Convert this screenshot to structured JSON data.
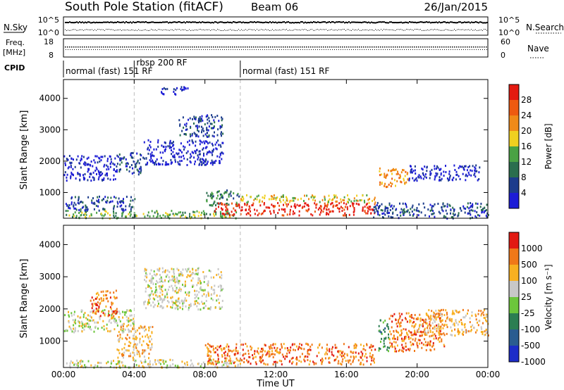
{
  "header": {
    "title": "South Pole Station (fitACF)",
    "beam": "Beam 06",
    "date": "26/Jan/2015"
  },
  "top_panels": {
    "nsky_label": "N.Sky",
    "nsearch_label": "N.Search",
    "nsky_ticks": [
      "10^5",
      "10^0"
    ],
    "nsearch_ticks": [
      "10^5",
      "10^0"
    ],
    "freq_label": "Freq.",
    "freq_unit": "[MHz]",
    "freq_ticks": [
      "18",
      "8"
    ],
    "nave_label": "Nave",
    "nave_ticks": [
      "60",
      "0"
    ],
    "cpid_label": "CPID"
  },
  "cpid_segments": [
    {
      "label": "normal (fast) 151 RF",
      "start_hour": 0
    },
    {
      "label": "rbsp 200 RF",
      "start_hour": 4
    },
    {
      "label": "normal (fast) 151 RF",
      "start_hour": 10
    }
  ],
  "axes": {
    "xlabel": "Time UT",
    "xticks": [
      "00:00",
      "04:00",
      "08:00",
      "12:00",
      "16:00",
      "20:00",
      "00:00"
    ],
    "ylabel": "Slant Range [km]",
    "yticks": [
      "4000",
      "3000",
      "2000",
      "1000"
    ]
  },
  "power_colorbar": {
    "label": "Power [dB]",
    "ticks": [
      "28",
      "24",
      "20",
      "16",
      "12",
      "8",
      "4"
    ],
    "colors": [
      "#1c1cd6",
      "#1c3c8c",
      "#2a6e4e",
      "#4aa244",
      "#f0d020",
      "#f08a18",
      "#ee5a10",
      "#e41a10"
    ]
  },
  "velocity_colorbar": {
    "label": "Velocity [m s⁻¹]",
    "ticks": [
      "1000",
      "500",
      "100",
      "25",
      "-25",
      "-100",
      "-500",
      "-1000"
    ],
    "colors": [
      "#1c2cc8",
      "#2a5c90",
      "#2c7e52",
      "#6cc63c",
      "#c8c8c8",
      "#f8b020",
      "#f07818",
      "#e21a12"
    ]
  },
  "chart_data": {
    "type": "heatmap",
    "title": "South Pole Station (fitACF)",
    "xlabel": "Time UT",
    "ylabel": "Slant Range [km]",
    "xlim_hours": [
      0,
      24
    ],
    "ylim_km": [
      180,
      4600
    ],
    "panels": [
      {
        "name": "Power [dB]",
        "blobs": [
          {
            "t0": 0.1,
            "t1": 10.0,
            "r0": 200,
            "r1": 450,
            "level": 3
          },
          {
            "t0": 0.1,
            "t1": 4.0,
            "r0": 450,
            "r1": 900,
            "level": 1
          },
          {
            "t0": 0.0,
            "t1": 3.0,
            "r0": 1400,
            "r1": 2200,
            "level": 0
          },
          {
            "t0": 3.0,
            "t1": 4.5,
            "r0": 1600,
            "r1": 2300,
            "level": 1
          },
          {
            "t0": 4.5,
            "t1": 9.0,
            "r0": 1900,
            "r1": 2700,
            "level": 0
          },
          {
            "t0": 6.5,
            "t1": 9.0,
            "r0": 2800,
            "r1": 3500,
            "level": 1
          },
          {
            "t0": 5.5,
            "t1": 7.0,
            "r0": 4150,
            "r1": 4400,
            "level": 0
          },
          {
            "t0": 8.0,
            "t1": 10.0,
            "r0": 600,
            "r1": 1100,
            "level": 2
          },
          {
            "t0": 8.5,
            "t1": 17.6,
            "r0": 300,
            "r1": 700,
            "level": 7
          },
          {
            "t0": 10.0,
            "t1": 17.6,
            "r0": 700,
            "r1": 950,
            "level": 4
          },
          {
            "t0": 17.8,
            "t1": 19.5,
            "r0": 1200,
            "r1": 1800,
            "level": 5
          },
          {
            "t0": 19.5,
            "t1": 23.5,
            "r0": 1400,
            "r1": 1900,
            "level": 0
          },
          {
            "t0": 17.5,
            "t1": 24.0,
            "r0": 200,
            "r1": 700,
            "level": 1
          }
        ]
      },
      {
        "name": "Velocity [m s-1]",
        "blobs": [
          {
            "t0": 0.1,
            "t1": 10.0,
            "r0": 200,
            "r1": 450,
            "level": 4
          },
          {
            "t0": 0.0,
            "t1": 4.0,
            "r0": 1300,
            "r1": 2000,
            "level": 4
          },
          {
            "t0": 4.5,
            "t1": 9.0,
            "r0": 2000,
            "r1": 3300,
            "level": 4
          },
          {
            "t0": 1.5,
            "t1": 3.0,
            "r0": 1800,
            "r1": 2600,
            "level": 6
          },
          {
            "t0": 3.0,
            "t1": 5.0,
            "r0": 500,
            "r1": 1500,
            "level": 5
          },
          {
            "t0": 8.0,
            "t1": 17.6,
            "r0": 300,
            "r1": 950,
            "level": 6
          },
          {
            "t0": 17.8,
            "t1": 18.4,
            "r0": 700,
            "r1": 1700,
            "level": 2
          },
          {
            "t0": 18.4,
            "t1": 21.5,
            "r0": 700,
            "r1": 1900,
            "level": 6
          },
          {
            "t0": 20.0,
            "t1": 24.0,
            "r0": 1200,
            "r1": 2000,
            "level": 5
          }
        ]
      }
    ]
  }
}
